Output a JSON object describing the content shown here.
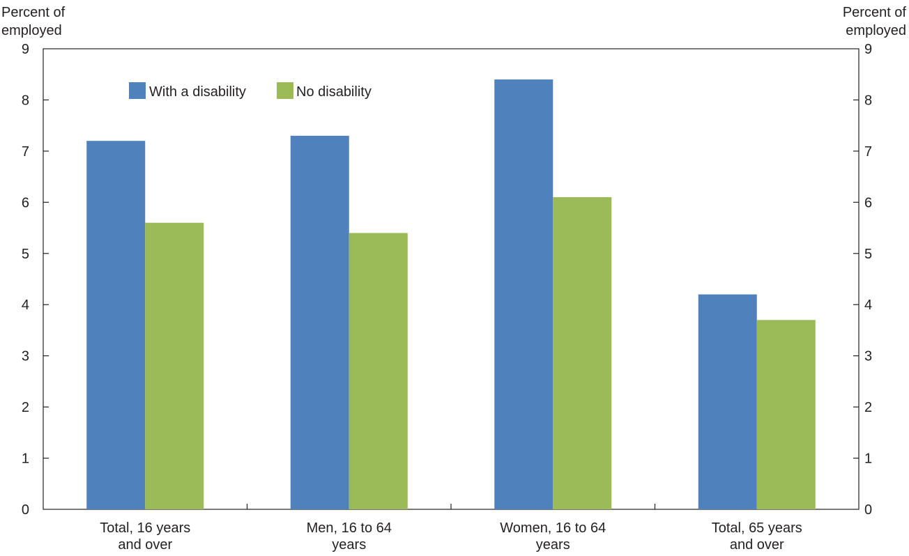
{
  "chart_data": {
    "type": "bar",
    "ylabel_left": [
      "Percent of",
      "employed"
    ],
    "ylabel_right": [
      "Percent of",
      "employed"
    ],
    "ylim": [
      0,
      9
    ],
    "yticks": [
      "0",
      "1",
      "2",
      "3",
      "4",
      "5",
      "6",
      "7",
      "8",
      "9"
    ],
    "categories": [
      [
        "Total, 16 years",
        "and over"
      ],
      [
        "Men, 16 to 64",
        "years"
      ],
      [
        "Women, 16 to 64",
        "years"
      ],
      [
        "Total, 65 years",
        "and over"
      ]
    ],
    "series": [
      {
        "name": "With a disability",
        "color": "#4f81bd",
        "values": [
          7.2,
          7.3,
          8.4,
          4.2
        ]
      },
      {
        "name": "No disability",
        "color": "#9bbb59",
        "values": [
          5.6,
          5.4,
          6.1,
          3.7
        ]
      }
    ],
    "legend_position": "top-left",
    "grid": false
  }
}
